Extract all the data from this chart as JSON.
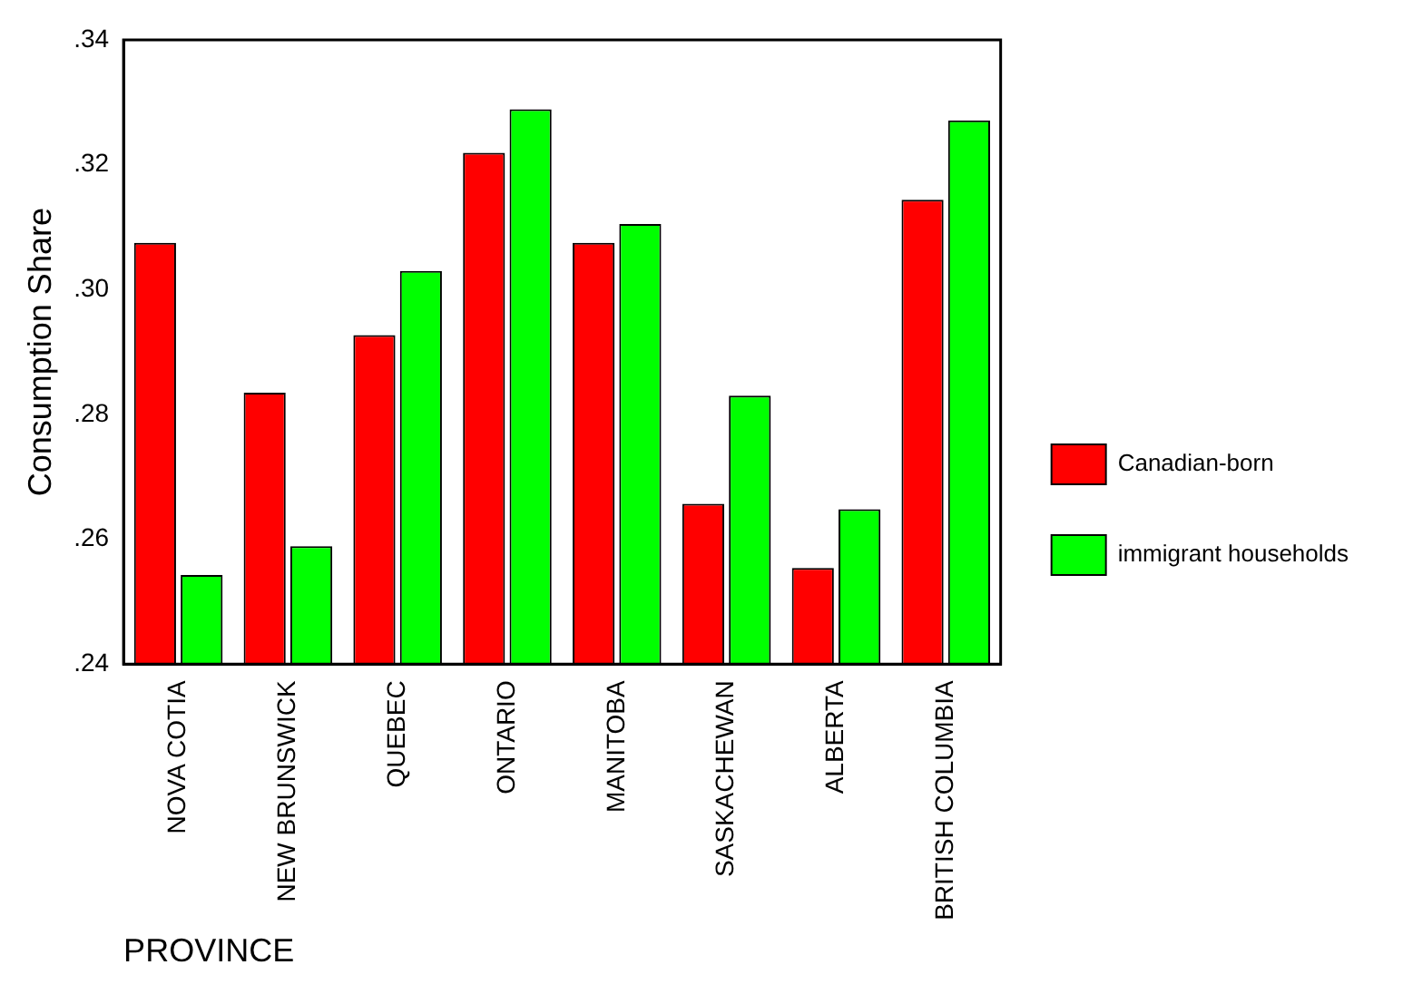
{
  "chart_data": {
    "type": "bar",
    "xlabel": "PROVINCE",
    "ylabel": "Consumption Share",
    "categories": [
      "NOVA COTIA",
      "NEW BRUNSWICK",
      "QUEBEC",
      "ONTARIO",
      "MANITOBA",
      "SASKACHEWAN",
      "ALBERTA",
      "BRITISH COLUMBIA"
    ],
    "series": [
      {
        "name": "Canadian-born",
        "color": "#ff0000",
        "values": [
          0.3075,
          0.2835,
          0.2927,
          0.3219,
          0.3075,
          0.2657,
          0.2554,
          0.3144
        ]
      },
      {
        "name": "immigrant households",
        "color": "#00ff00",
        "values": [
          0.2543,
          0.2589,
          0.303,
          0.3289,
          0.3105,
          0.283,
          0.2648,
          0.3271
        ]
      }
    ],
    "ylim": [
      0.24,
      0.34
    ],
    "yticks": [
      {
        "value": 0.24,
        "label": ".24"
      },
      {
        "value": 0.26,
        "label": ".26"
      },
      {
        "value": 0.28,
        "label": ".28"
      },
      {
        "value": 0.3,
        "label": ".30"
      },
      {
        "value": 0.32,
        "label": ".32"
      },
      {
        "value": 0.34,
        "label": ".34"
      }
    ],
    "grid": false,
    "legend": "right"
  }
}
